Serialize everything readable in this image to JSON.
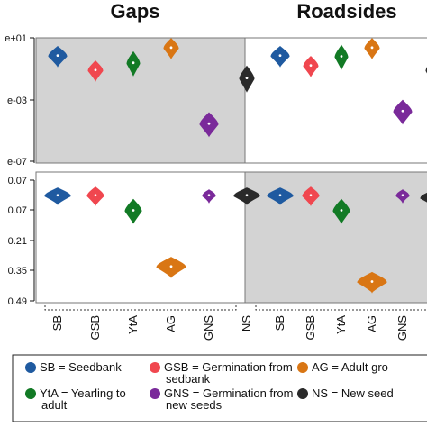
{
  "chart_data": [
    {
      "type": "violin",
      "title": "Gaps",
      "panel": "top-left",
      "y_scale": "log",
      "y_tick_labels": [
        "e+01",
        "e-03",
        "e-07"
      ],
      "ylim": [
        1e-07,
        10
      ],
      "categories": [
        "SB",
        "GSB",
        "YtA",
        "AG",
        "GNS",
        "NS"
      ],
      "values": [
        0.9,
        0.1,
        0.3,
        3.0,
        3e-05,
        0.03
      ],
      "background": "grey"
    },
    {
      "type": "violin",
      "title": "Roadsides",
      "panel": "top-right",
      "y_scale": "log",
      "ylim": [
        1e-07,
        10
      ],
      "categories": [
        "SB",
        "GSB",
        "YtA",
        "AG",
        "GNS",
        "NS"
      ],
      "values": [
        0.9,
        0.2,
        0.8,
        3.0,
        0.0002,
        0.1
      ],
      "background": "white"
    },
    {
      "type": "violin",
      "panel": "bottom-left",
      "y_scale": "linear",
      "y_tick_labels": [
        "0.07",
        "0.07",
        "0.21",
        "0.35",
        "0.49"
      ],
      "ylim": [
        -0.07,
        0.49
      ],
      "categories": [
        "SB",
        "GSB",
        "YtA",
        "AG",
        "GNS",
        "NS"
      ],
      "values": [
        0.0,
        0.0,
        0.07,
        0.33,
        0.0,
        0.0
      ],
      "background": "white"
    },
    {
      "type": "violin",
      "panel": "bottom-right",
      "y_scale": "linear",
      "ylim": [
        -0.07,
        0.49
      ],
      "categories": [
        "SB",
        "GSB",
        "YtA",
        "AG",
        "GNS",
        "NS"
      ],
      "values": [
        0.0,
        0.0,
        0.07,
        0.4,
        0.0,
        0.01
      ],
      "background": "grey"
    }
  ],
  "legend": {
    "placement": "bottom",
    "entries": [
      {
        "code": "SB",
        "lines": [
          "SB = Seedbank"
        ],
        "color": "#1f5aa0"
      },
      {
        "code": "GSB",
        "lines": [
          "GSB = Germination from",
          "sedbank"
        ],
        "color": "#f0474f"
      },
      {
        "code": "AG",
        "lines": [
          "AG = Adult gro"
        ],
        "color": "#d97614"
      },
      {
        "code": "YtA",
        "lines": [
          "YtA = Yearling to",
          "adult"
        ],
        "color": "#127a25"
      },
      {
        "code": "GNS",
        "lines": [
          "GNS = Germination from",
          "new seeds"
        ],
        "color": "#7a2a9a"
      },
      {
        "code": "NS",
        "lines": [
          "NS = New seed"
        ],
        "color": "#2a2a2a"
      }
    ]
  },
  "colors": {
    "SB": "#1f5aa0",
    "GSB": "#f0474f",
    "YtA": "#127a25",
    "AG": "#d97614",
    "GNS": "#7a2a9a",
    "NS": "#2a2a2a",
    "panel_grey": "#d3d3d3"
  }
}
